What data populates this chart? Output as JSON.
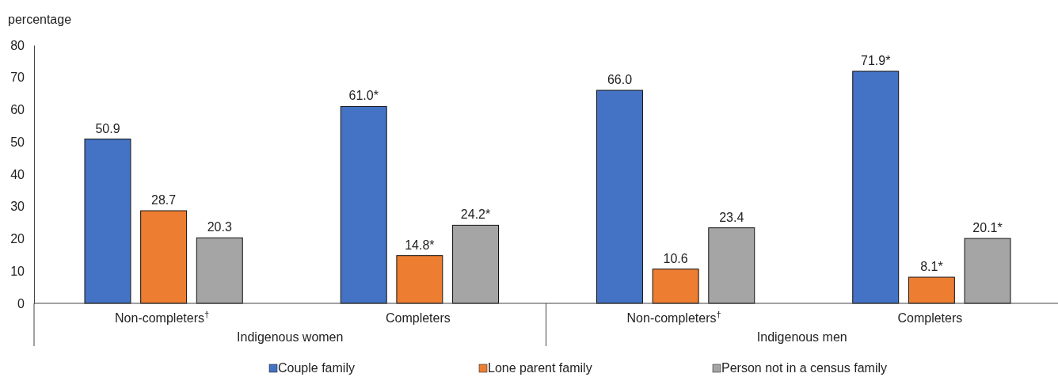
{
  "chart_data": {
    "type": "bar",
    "ylabel": "percentage",
    "categories": [
      "Non-completers$^{†}$",
      "Completers",
      "Non-completers$^{†}$",
      "Completers"
    ],
    "series": [
      {
        "name": "Couple family",
        "color": "#4472c4",
        "values": [
          50.9,
          61.0,
          66.0,
          71.9
        ],
        "value_labels": [
          "50.9",
          "61.0*",
          "66.0",
          "71.9*"
        ]
      },
      {
        "name": "Lone parent family",
        "color": "#ed7d31",
        "values": [
          28.7,
          14.8,
          10.6,
          8.1
        ],
        "value_labels": [
          "28.7",
          "14.8*",
          "10.6",
          "8.1*"
        ]
      },
      {
        "name": "Person not in a census family",
        "color": "#a5a5a5",
        "values": [
          20.3,
          24.2,
          23.4,
          20.1
        ],
        "value_labels": [
          "20.3",
          "24.2*",
          "23.4",
          "20.1*"
        ]
      }
    ],
    "annotations": [
      "Indigenous women",
      "Indigenous men"
    ],
    "ylim": [
      0,
      80
    ],
    "yticks": [
      0,
      10,
      20,
      30,
      40,
      50,
      60,
      70,
      80
    ],
    "grid": false,
    "legend": "bottom"
  }
}
